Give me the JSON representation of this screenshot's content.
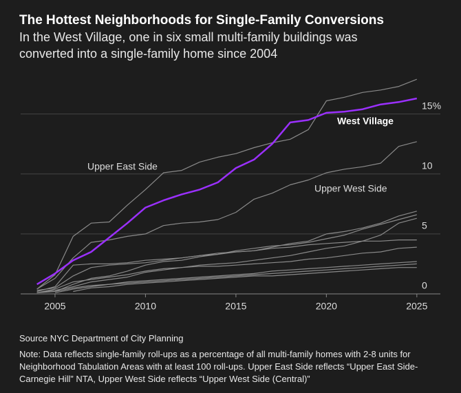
{
  "chart_data": {
    "type": "line",
    "title": "The Hottest Neighborhoods for Single-Family Conversions",
    "subtitle": "In the West Village, one in six small multi-family buildings was converted into a single-family home since 2004",
    "source": "Source NYC Department of City Planning",
    "note": "Note: Data reflects single-family roll-ups as a percentage of all multi-family homes with 2-8 units for Neighborhood Tabulation Areas with at least 100 roll-ups. Upper East Side reflects “Upper East Side-Carnegie Hill” NTA, Upper West Side reflects “Upper West Side (Central)”",
    "x": [
      2004,
      2005,
      2006,
      2007,
      2008,
      2009,
      2010,
      2011,
      2012,
      2013,
      2014,
      2015,
      2016,
      2017,
      2018,
      2019,
      2020,
      2021,
      2022,
      2023,
      2024,
      2025
    ],
    "xlim": [
      2003.1,
      2026.3
    ],
    "xticks": [
      2005,
      2010,
      2015,
      2020,
      2025
    ],
    "ylim": [
      0,
      19
    ],
    "yticks": [
      0,
      5,
      10,
      {
        "value": 15,
        "label": "15%"
      }
    ],
    "grid": true,
    "series": [
      {
        "color": "#8a8a8a",
        "values": [
          0.3,
          0.5,
          1.5,
          2.2,
          2.4,
          2.5,
          2.6,
          2.8,
          3.0,
          3.2,
          3.3,
          3.5,
          3.6,
          3.9,
          4.2,
          4.4,
          5.0,
          5.2,
          5.5,
          5.9,
          6.5,
          6.9
        ]
      },
      {
        "color": "#8a8a8a",
        "values": [
          null,
          0.2,
          0.8,
          1.3,
          1.5,
          1.9,
          2.4,
          2.7,
          2.8,
          3.1,
          3.3,
          3.6,
          3.8,
          4.0,
          4.1,
          4.3,
          4.6,
          4.9,
          5.4,
          5.8,
          6.2,
          6.6
        ]
      },
      {
        "color": "#8a8a8a",
        "values": [
          0.1,
          0.3,
          0.6,
          1.0,
          1.2,
          1.4,
          1.8,
          2.0,
          2.2,
          2.4,
          2.5,
          2.6,
          2.8,
          3.0,
          3.2,
          3.5,
          3.8,
          4.0,
          4.4,
          4.9,
          5.9,
          6.3
        ]
      },
      {
        "color": "#8a8a8a",
        "values": [
          0.2,
          0.6,
          2.4,
          2.5,
          2.5,
          2.6,
          2.8,
          2.9,
          3.0,
          3.2,
          3.4,
          3.5,
          3.6,
          3.8,
          3.9,
          4.1,
          4.2,
          4.3,
          4.4,
          4.4,
          4.5,
          4.5
        ]
      },
      {
        "color": "#8a8a8a",
        "values": [
          0.1,
          0.4,
          1.0,
          1.2,
          1.4,
          1.6,
          1.9,
          2.1,
          2.2,
          2.3,
          2.3,
          2.4,
          2.5,
          2.6,
          2.7,
          2.9,
          3.0,
          3.2,
          3.4,
          3.5,
          3.8,
          3.9
        ]
      },
      {
        "color": "#8a8a8a",
        "values": [
          null,
          0.1,
          0.4,
          0.6,
          0.8,
          1.0,
          1.1,
          1.2,
          1.3,
          1.4,
          1.5,
          1.6,
          1.7,
          1.9,
          2.0,
          2.1,
          2.2,
          2.3,
          2.4,
          2.5,
          2.6,
          2.7
        ]
      },
      {
        "color": "#8a8a8a",
        "values": [
          0.1,
          0.2,
          0.5,
          0.7,
          0.8,
          0.9,
          1.0,
          1.1,
          1.2,
          1.3,
          1.4,
          1.5,
          1.6,
          1.7,
          1.8,
          1.9,
          2.0,
          2.1,
          2.2,
          2.3,
          2.4,
          2.5
        ]
      },
      {
        "color": "#8a8a8a",
        "values": [
          null,
          null,
          0.2,
          0.5,
          0.6,
          0.8,
          0.9,
          1.0,
          1.1,
          1.2,
          1.3,
          1.4,
          1.5,
          1.5,
          1.6,
          1.7,
          1.8,
          1.9,
          2.0,
          2.1,
          2.2,
          2.2
        ]
      },
      {
        "name": "Upper West Side",
        "color": "#8a8a8a",
        "values": [
          0.4,
          1.3,
          3.0,
          4.3,
          4.5,
          4.8,
          5.0,
          5.7,
          5.9,
          6.0,
          6.2,
          6.8,
          7.9,
          8.4,
          9.1,
          9.5,
          10.1,
          10.4,
          10.6,
          10.9,
          12.3,
          12.7
        ]
      },
      {
        "name": "Upper East Side",
        "color": "#8a8a8a",
        "values": [
          0.4,
          1.6,
          4.8,
          5.9,
          6.0,
          7.4,
          8.7,
          10.1,
          10.3,
          11.0,
          11.4,
          11.7,
          12.2,
          12.6,
          12.9,
          13.7,
          16.1,
          16.4,
          16.8,
          17.0,
          17.3,
          17.9
        ]
      },
      {
        "name": "West Village",
        "color": "#9b30ff",
        "values": [
          0.8,
          1.7,
          2.8,
          3.5,
          4.7,
          5.9,
          7.2,
          7.8,
          8.3,
          8.7,
          9.3,
          10.5,
          11.2,
          12.5,
          14.3,
          14.5,
          15.1,
          15.2,
          15.4,
          15.8,
          16.0,
          16.3
        ]
      }
    ]
  }
}
